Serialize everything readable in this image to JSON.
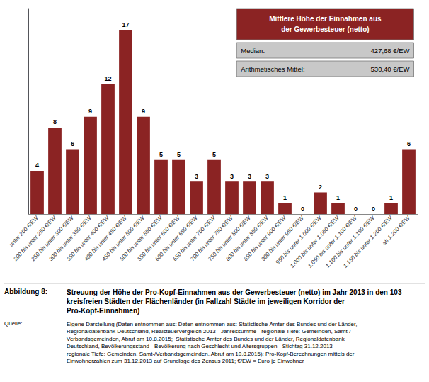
{
  "chart_data": {
    "type": "bar",
    "categories": [
      "unter 200 €/EW",
      "200 bis unter 250 €/EW",
      "250 bis unter 300 €/EW",
      "300 bis unter 350 €/EW",
      "350 bis unter 400 €/EW",
      "400 bis unter 450 €/EW",
      "450 bis unter 500 €/EW",
      "500 bis unter 550 €/EW",
      "550 bis unter 600 €/EW",
      "600 bis unter 650 €/EW",
      "650 bis unter 700 €/EW",
      "700 bis unter 750 €/EW",
      "750 bis unter 800 €/EW",
      "800 bis unter 850 €/EW",
      "850 bis unter 900 €/EW",
      "900 bis unter 950 €/EW",
      "950 bis unter 1.000 €/EW",
      "1.000 bis unter 1.050 €/EW",
      "1.050 bis unter 1.100 €/EW",
      "1.100 bis unter 1.150 €/EW",
      "1.150 bis unter 1.200 €/EW",
      "ab 1.200 €/EW"
    ],
    "values": [
      4,
      8,
      6,
      9,
      12,
      17,
      9,
      5,
      5,
      3,
      5,
      3,
      3,
      3,
      1,
      0,
      2,
      1,
      0,
      0,
      1,
      6
    ],
    "color": "#8B2323",
    "ylim": [
      0,
      19
    ],
    "grid": false,
    "data_labels": true,
    "tick_labels": "x",
    "annotations": [
      "Mittlere Höhe der Einnahmen aus\nder Gewerbesteuer (netto)",
      "Median:",
      "427,68 €/EW",
      "Arithmetisches Mittel:",
      "530,40 €/EW",
      "Abbildung 8:",
      "Streuung der Höhe der Pro-Kopf-Einnahmen aus der Gewerbesteuer (netto) im Jahr 2013 in den 103 kreisfreien Städten der Flächenländer (in Fallzahl Städte im jeweiligen Korridor der Pro-Kopf-Einnahmen)",
      "Quelle:",
      "Eigene Darstellung (Daten entnommen aus: Daten entnommen aus: Statistische Ämter des Bundes und der Länder, Regionaldatenbank Deutschland, Realsteuervergleich 2013 - Jahressumme - regionale Tiefe: Gemeinden, Samt-/Verbandsgemeinden, Abruf am 10.8.2015;  Statistische Ämter des Bundes und der Länder, Regionaldatenbank Deutschland, Bevölkerungsstand - Bevölkerung nach Geschlecht und Altersgruppen - Stichtag 31.12.2013 - regionale Tiefe: Gemeinden, Samt-/Verbandsgemeinden, Abruf am 10.8.2015); Pro-Kopf-Berechnungen mittels der Einwohnerzahlen zum 31.12.2013 auf Grundlage des Zensus 2011; €/EW = Euro je Einwohner"
    ]
  }
}
